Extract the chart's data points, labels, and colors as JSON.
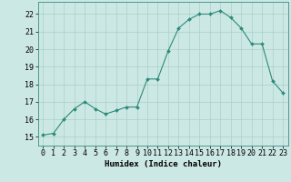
{
  "x": [
    0,
    1,
    2,
    3,
    4,
    5,
    6,
    7,
    8,
    9,
    10,
    11,
    12,
    13,
    14,
    15,
    16,
    17,
    18,
    19,
    20,
    21,
    22,
    23
  ],
  "y": [
    15.1,
    15.2,
    16.0,
    16.6,
    17.0,
    16.6,
    16.3,
    16.5,
    16.7,
    16.7,
    18.3,
    18.3,
    19.9,
    21.2,
    21.7,
    22.0,
    22.0,
    22.2,
    21.8,
    21.2,
    20.3,
    20.3,
    18.2,
    17.5
  ],
  "line_color": "#2d8a7a",
  "marker": "D",
  "marker_size": 2.0,
  "bg_color": "#cce8e4",
  "grid_color": "#aacfca",
  "xlabel": "Humidex (Indice chaleur)",
  "xlim": [
    -0.5,
    23.5
  ],
  "ylim": [
    14.5,
    22.7
  ],
  "yticks": [
    15,
    16,
    17,
    18,
    19,
    20,
    21,
    22
  ],
  "xticks": [
    0,
    1,
    2,
    3,
    4,
    5,
    6,
    7,
    8,
    9,
    10,
    11,
    12,
    13,
    14,
    15,
    16,
    17,
    18,
    19,
    20,
    21,
    22,
    23
  ],
  "xlabel_fontsize": 6.5,
  "tick_fontsize": 6.0,
  "spine_color": "#4a9990"
}
